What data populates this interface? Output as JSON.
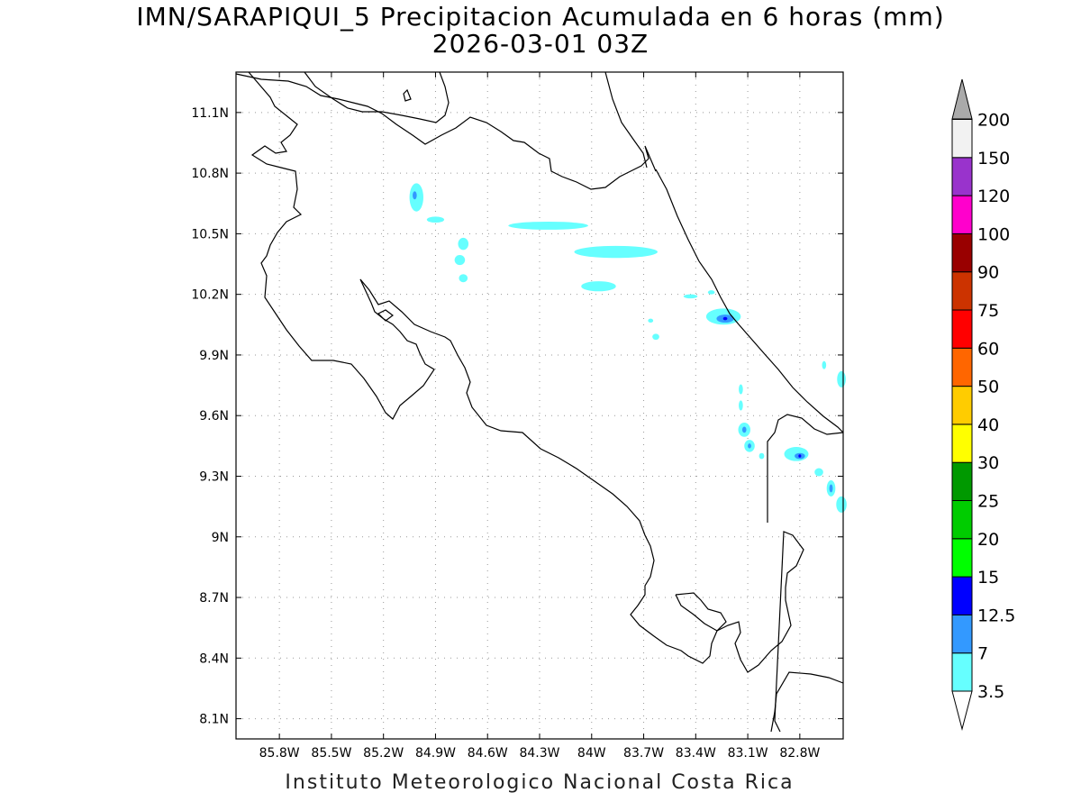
{
  "title": {
    "line1": "IMN/SARAPIQUI_5 Precipitacion Acumulada en 6 horas (mm)",
    "line2": "2026-03-01 03Z"
  },
  "footer": "Instituto Meteorologico Nacional Costa Rica",
  "map": {
    "lon_range": [
      -86.05,
      -82.55
    ],
    "lat_range": [
      8.0,
      11.3
    ],
    "lon_ticks": [
      {
        "value": -85.8,
        "label": "85.8W"
      },
      {
        "value": -85.5,
        "label": "85.5W"
      },
      {
        "value": -85.2,
        "label": "85.2W"
      },
      {
        "value": -84.9,
        "label": "84.9W"
      },
      {
        "value": -84.6,
        "label": "84.6W"
      },
      {
        "value": -84.3,
        "label": "84.3W"
      },
      {
        "value": -84.0,
        "label": "84W"
      },
      {
        "value": -83.7,
        "label": "83.7W"
      },
      {
        "value": -83.4,
        "label": "83.4W"
      },
      {
        "value": -83.1,
        "label": "83.1W"
      },
      {
        "value": -82.8,
        "label": "82.8W"
      }
    ],
    "lat_ticks": [
      {
        "value": 11.1,
        "label": "11.1N"
      },
      {
        "value": 10.8,
        "label": "10.8N"
      },
      {
        "value": 10.5,
        "label": "10.5N"
      },
      {
        "value": 10.2,
        "label": "10.2N"
      },
      {
        "value": 9.9,
        "label": "9.9N"
      },
      {
        "value": 9.6,
        "label": "9.6N"
      },
      {
        "value": 9.3,
        "label": "9.3N"
      },
      {
        "value": 9.0,
        "label": "9N"
      },
      {
        "value": 8.7,
        "label": "8.7N"
      },
      {
        "value": 8.4,
        "label": "8.4N"
      },
      {
        "value": 8.1,
        "label": "8.1N"
      }
    ],
    "grid": true,
    "precip_cells": [
      {
        "lon": -85.01,
        "lat": 10.68,
        "rlon": 0.04,
        "rlat": 0.07,
        "level": "3.5-7"
      },
      {
        "lon": -85.02,
        "lat": 10.69,
        "rlon": 0.012,
        "rlat": 0.02,
        "level": "7-12.5"
      },
      {
        "lon": -84.9,
        "lat": 10.57,
        "rlon": 0.05,
        "rlat": 0.015,
        "level": "3.5-7"
      },
      {
        "lon": -84.74,
        "lat": 10.45,
        "rlon": 0.03,
        "rlat": 0.03,
        "level": "3.5-7"
      },
      {
        "lon": -84.76,
        "lat": 10.37,
        "rlon": 0.03,
        "rlat": 0.025,
        "level": "3.5-7"
      },
      {
        "lon": -84.74,
        "lat": 10.28,
        "rlon": 0.025,
        "rlat": 0.02,
        "level": "3.5-7"
      },
      {
        "lon": -84.25,
        "lat": 10.54,
        "rlon": 0.23,
        "rlat": 0.02,
        "level": "3.5-7"
      },
      {
        "lon": -83.86,
        "lat": 10.41,
        "rlon": 0.24,
        "rlat": 0.03,
        "level": "3.5-7"
      },
      {
        "lon": -83.96,
        "lat": 10.24,
        "rlon": 0.1,
        "rlat": 0.025,
        "level": "3.5-7"
      },
      {
        "lon": -83.24,
        "lat": 10.09,
        "rlon": 0.1,
        "rlat": 0.04,
        "level": "3.5-7"
      },
      {
        "lon": -83.23,
        "lat": 10.08,
        "rlon": 0.05,
        "rlat": 0.02,
        "level": "7-12.5"
      },
      {
        "lon": -83.23,
        "lat": 10.08,
        "rlon": 0.012,
        "rlat": 0.008,
        "level": "12.5-15"
      },
      {
        "lon": -83.43,
        "lat": 10.19,
        "rlon": 0.04,
        "rlat": 0.01,
        "level": "3.5-7"
      },
      {
        "lon": -83.31,
        "lat": 10.21,
        "rlon": 0.02,
        "rlat": 0.01,
        "level": "3.5-7"
      },
      {
        "lon": -83.66,
        "lat": 10.07,
        "rlon": 0.015,
        "rlat": 0.01,
        "level": "3.5-7"
      },
      {
        "lon": -83.63,
        "lat": 9.99,
        "rlon": 0.02,
        "rlat": 0.015,
        "level": "3.5-7"
      },
      {
        "lon": -83.14,
        "lat": 9.73,
        "rlon": 0.012,
        "rlat": 0.025,
        "level": "3.5-7"
      },
      {
        "lon": -83.14,
        "lat": 9.65,
        "rlon": 0.012,
        "rlat": 0.025,
        "level": "3.5-7"
      },
      {
        "lon": -83.12,
        "lat": 9.53,
        "rlon": 0.035,
        "rlat": 0.035,
        "level": "3.5-7"
      },
      {
        "lon": -83.12,
        "lat": 9.53,
        "rlon": 0.012,
        "rlat": 0.015,
        "level": "7-12.5"
      },
      {
        "lon": -83.09,
        "lat": 9.45,
        "rlon": 0.03,
        "rlat": 0.03,
        "level": "3.5-7"
      },
      {
        "lon": -83.09,
        "lat": 9.45,
        "rlon": 0.01,
        "rlat": 0.012,
        "level": "7-12.5"
      },
      {
        "lon": -83.02,
        "lat": 9.4,
        "rlon": 0.015,
        "rlat": 0.015,
        "level": "3.5-7"
      },
      {
        "lon": -82.82,
        "lat": 9.41,
        "rlon": 0.07,
        "rlat": 0.035,
        "level": "3.5-7"
      },
      {
        "lon": -82.8,
        "lat": 9.4,
        "rlon": 0.03,
        "rlat": 0.015,
        "level": "7-12.5"
      },
      {
        "lon": -82.8,
        "lat": 9.4,
        "rlon": 0.008,
        "rlat": 0.008,
        "level": "12.5-15"
      },
      {
        "lon": -82.69,
        "lat": 9.32,
        "rlon": 0.025,
        "rlat": 0.02,
        "level": "3.5-7"
      },
      {
        "lon": -82.62,
        "lat": 9.24,
        "rlon": 0.025,
        "rlat": 0.04,
        "level": "3.5-7"
      },
      {
        "lon": -82.62,
        "lat": 9.24,
        "rlon": 0.01,
        "rlat": 0.02,
        "level": "7-12.5"
      },
      {
        "lon": -82.56,
        "lat": 9.16,
        "rlon": 0.03,
        "rlat": 0.04,
        "level": "3.5-7"
      },
      {
        "lon": -82.56,
        "lat": 9.78,
        "rlon": 0.025,
        "rlat": 0.04,
        "level": "3.5-7"
      },
      {
        "lon": -82.66,
        "lat": 9.85,
        "rlon": 0.012,
        "rlat": 0.02,
        "level": "3.5-7"
      }
    ]
  },
  "colorbar": {
    "levels": [
      {
        "label": "3.5",
        "color": "#66ffff"
      },
      {
        "label": "7",
        "color": "#3399ff"
      },
      {
        "label": "12.5",
        "color": "#0000ff"
      },
      {
        "label": "15",
        "color": "#00ff00"
      },
      {
        "label": "20",
        "color": "#00cc00"
      },
      {
        "label": "25",
        "color": "#009900"
      },
      {
        "label": "30",
        "color": "#ffff00"
      },
      {
        "label": "40",
        "color": "#ffcc00"
      },
      {
        "label": "50",
        "color": "#ff6600"
      },
      {
        "label": "60",
        "color": "#ff0000"
      },
      {
        "label": "75",
        "color": "#cc3300"
      },
      {
        "label": "90",
        "color": "#990000"
      },
      {
        "label": "100",
        "color": "#ff00cc"
      },
      {
        "label": "120",
        "color": "#9933cc"
      },
      {
        "label": "150",
        "color": "#f2f2f2"
      },
      {
        "label": "200",
        "color": "#aaaaaa"
      }
    ],
    "below_color": "#ffffff",
    "above_color": "#aaaaaa"
  },
  "level_colors": {
    "3.5-7": "#66ffff",
    "7-12.5": "#3399ff",
    "12.5-15": "#0000ff"
  }
}
